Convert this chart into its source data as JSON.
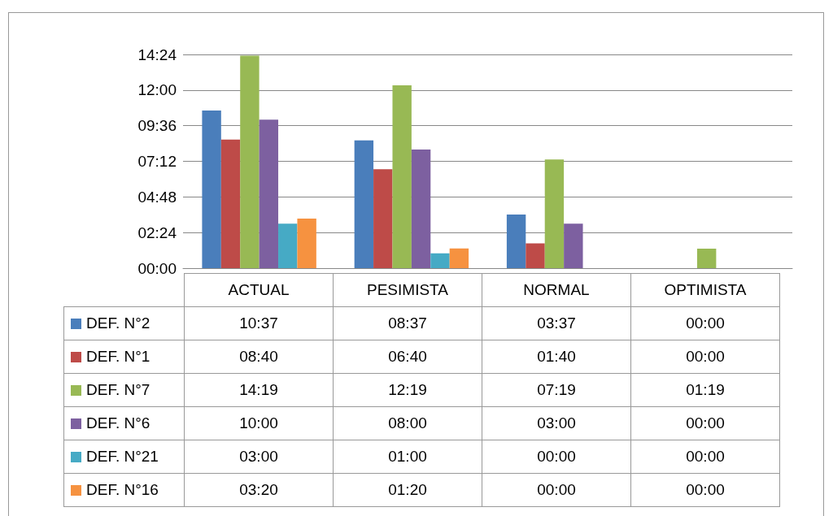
{
  "chart_data": {
    "type": "bar",
    "categories": [
      "ACTUAL",
      "PESIMISTA",
      "NORMAL",
      "OPTIMISTA"
    ],
    "series": [
      {
        "name": "DEF. N°2",
        "color": "#4a7ebb",
        "values": [
          10.6167,
          8.6167,
          3.6167,
          0
        ],
        "value_labels": [
          "10:37",
          "08:37",
          "03:37",
          "00:00"
        ]
      },
      {
        "name": "DEF. N°1",
        "color": "#be4b48",
        "values": [
          8.6667,
          6.6667,
          1.6667,
          0
        ],
        "value_labels": [
          "08:40",
          "06:40",
          "01:40",
          "00:00"
        ]
      },
      {
        "name": "DEF. N°7",
        "color": "#98b954",
        "values": [
          14.3167,
          12.3167,
          7.3167,
          1.3167
        ],
        "value_labels": [
          "14:19",
          "12:19",
          "07:19",
          "01:19"
        ]
      },
      {
        "name": "DEF. N°6",
        "color": "#7d60a0",
        "values": [
          10,
          8,
          3,
          0
        ],
        "value_labels": [
          "10:00",
          "08:00",
          "03:00",
          "00:00"
        ]
      },
      {
        "name": "DEF. N°21",
        "color": "#46aac5",
        "values": [
          3,
          1,
          0,
          0
        ],
        "value_labels": [
          "03:00",
          "01:00",
          "00:00",
          "00:00"
        ]
      },
      {
        "name": "DEF. N°16",
        "color": "#f69240",
        "values": [
          3.3333,
          1.3333,
          0,
          0
        ],
        "value_labels": [
          "03:20",
          "01:20",
          "00:00",
          "00:00"
        ]
      }
    ],
    "ylim": [
      0,
      14.4
    ],
    "yticks": [
      {
        "value": 0,
        "label": "00:00"
      },
      {
        "value": 2.4,
        "label": "02:24"
      },
      {
        "value": 4.8,
        "label": "04:48"
      },
      {
        "value": 7.2,
        "label": "07:12"
      },
      {
        "value": 9.6,
        "label": "09:36"
      },
      {
        "value": 12,
        "label": "12:00"
      },
      {
        "value": 14.4,
        "label": "14:24"
      }
    ],
    "grid": "y",
    "legend": "bottom left"
  }
}
